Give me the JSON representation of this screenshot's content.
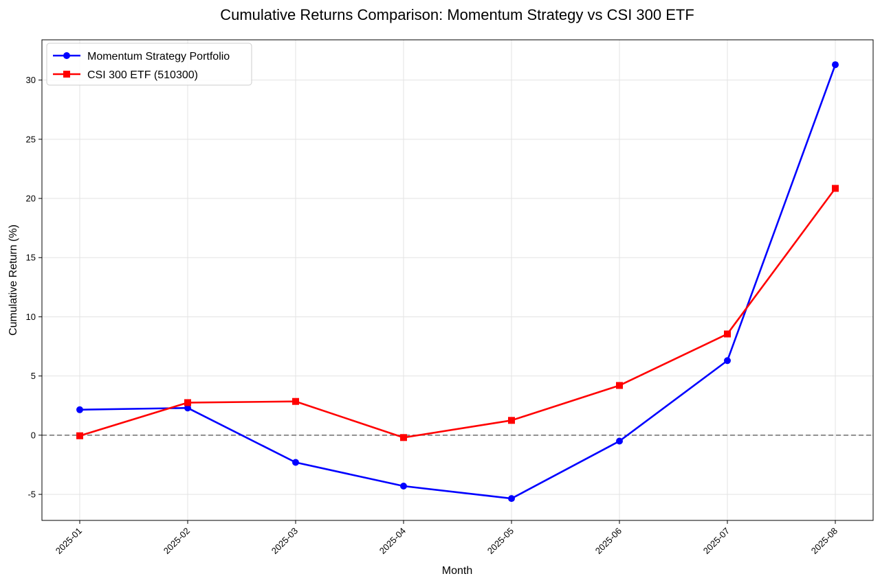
{
  "chart_data": {
    "type": "line",
    "title": "Cumulative Returns Comparison: Momentum Strategy vs CSI 300 ETF",
    "xlabel": "Month",
    "ylabel": "Cumulative Return (%)",
    "categories": [
      "2025-01",
      "2025-02",
      "2025-03",
      "2025-04",
      "2025-05",
      "2025-06",
      "2025-07",
      "2025-08"
    ],
    "ylim": [
      -7.2,
      33.4
    ],
    "yticks": [
      -5,
      0,
      5,
      10,
      15,
      20,
      25,
      30
    ],
    "grid": true,
    "legend_position": "top-left",
    "reference_line": {
      "y": 0,
      "style": "dashed",
      "color": "#808080"
    },
    "series": [
      {
        "name": "Momentum Strategy Portfolio",
        "color": "#0000ff",
        "marker": "circle",
        "values": [
          2.15,
          2.3,
          -2.3,
          -4.3,
          -5.35,
          -0.5,
          6.3,
          31.3
        ]
      },
      {
        "name": "CSI 300 ETF (510300)",
        "color": "#ff0000",
        "marker": "square",
        "values": [
          -0.05,
          2.75,
          2.85,
          -0.2,
          1.25,
          4.2,
          8.55,
          20.85
        ]
      }
    ]
  }
}
